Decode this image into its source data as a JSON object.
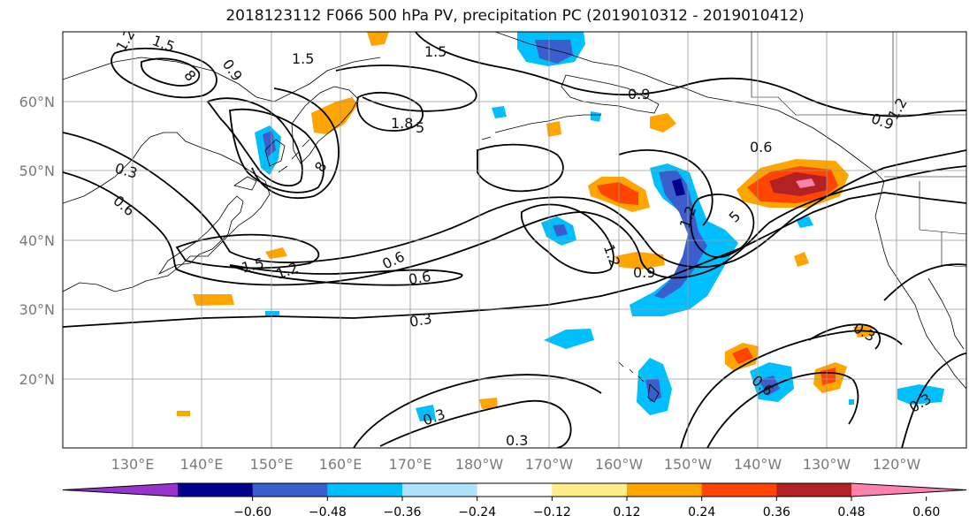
{
  "title": "2018123112 F066 500 hPa PV, precipitation PC (2019010312 - 2019010412)",
  "lat_labels": [
    "60°N",
    "50°N",
    "40°N",
    "30°N",
    "20°N"
  ],
  "lon_labels": [
    "130°E",
    "140°E",
    "150°E",
    "160°E",
    "170°E",
    "180°W",
    "170°W",
    "160°W",
    "150°W",
    "140°W",
    "130°W",
    "120°W"
  ],
  "colorbar": {
    "colors": [
      "#9a32cd",
      "#00008b",
      "#3a5fcd",
      "#00bfff",
      "#b0e2ff",
      "#ffffff",
      "#ffec8b",
      "#ffa500",
      "#ff4500",
      "#b22222",
      "#ff82ab"
    ],
    "tick_labels": [
      "−0.60",
      "−0.48",
      "−0.36",
      "−0.24",
      "−0.12",
      "0.12",
      "0.24",
      "0.36",
      "0.48",
      "0.60"
    ]
  },
  "contour_labels": [
    {
      "text": "1.2"
    },
    {
      "text": "1.5"
    },
    {
      "text": "8"
    },
    {
      "text": "0.9"
    },
    {
      "text": "1.5"
    },
    {
      "text": "1.5"
    },
    {
      "text": "0.9"
    },
    {
      "text": "0.9"
    },
    {
      "text": "1.8"
    },
    {
      "text": "5"
    },
    {
      "text": "0.3"
    },
    {
      "text": "0.6"
    },
    {
      "text": "0.6"
    },
    {
      "text": "1.5"
    },
    {
      "text": "1.2"
    },
    {
      "text": "0.6"
    },
    {
      "text": "0.6"
    },
    {
      "text": "0.3"
    },
    {
      "text": "0.9"
    },
    {
      "text": "1.2"
    },
    {
      "text": "5"
    },
    {
      "text": "0.3"
    },
    {
      "text": "0.3"
    },
    {
      "text": "0.3"
    },
    {
      "text": "0.3"
    },
    {
      "text": "0.6"
    },
    {
      "text": "1.2"
    },
    {
      "text": "8"
    },
    {
      "text": "1.2"
    }
  ]
}
